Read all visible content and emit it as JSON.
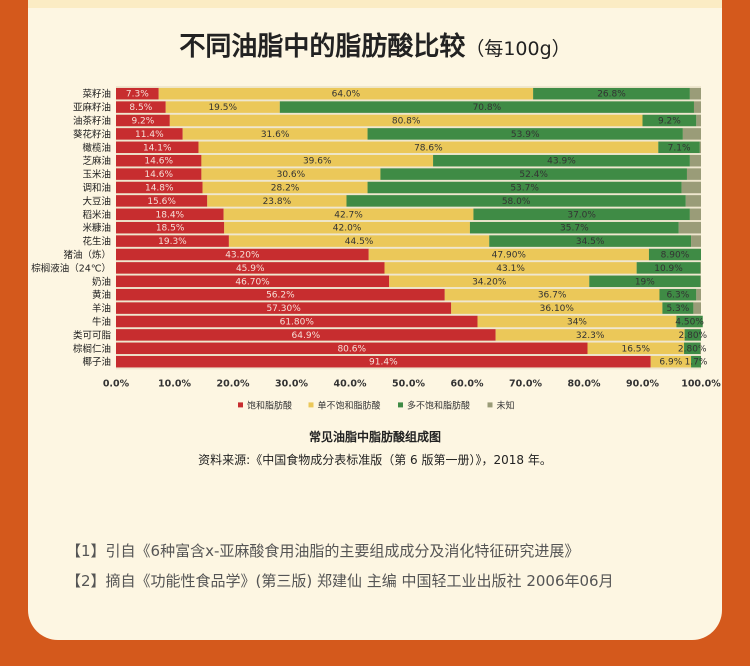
{
  "page": {
    "title": "不同油脂中的脂肪酸比较",
    "title_unit": "（每100g）",
    "caption": "常见油脂中脂肪酸组成图",
    "source": "资料来源:《中国食物成分表标准版（第 6 版第一册）》，2018 年。",
    "references": [
      "【1】引自《6种富含x-亚麻酸食用油脂的主要组成成分及消化特征研究进展》",
      "【2】摘自《功能性食品学》(第三版) 郑建仙 主编    中国轻工业出版社 2006年06月"
    ]
  },
  "colors": {
    "saturated": "#c72d2f",
    "monounsaturated": "#ebc859",
    "polyunsaturated": "#3f8b45",
    "unknown": "#9a9c78",
    "background": "#d4591c",
    "card": "#fdf6e2"
  },
  "chart_data": {
    "type": "bar",
    "orientation": "horizontal",
    "stacked": true,
    "categories": [
      "菜籽油",
      "亚麻籽油",
      "油茶籽油",
      "葵花籽油",
      "橄榄油",
      "芝麻油",
      "玉米油",
      "调和油",
      "大豆油",
      "稻米油",
      "米糠油",
      "花生油",
      "猪油（炼）",
      "棕榈液油（24℃）",
      "奶油",
      "黄油",
      "羊油",
      "牛油",
      "类可可脂",
      "棕榈仁油",
      "椰子油"
    ],
    "series": [
      {
        "name": "饱和脂肪酸",
        "values": [
          7.3,
          8.5,
          9.2,
          11.4,
          14.1,
          14.6,
          14.6,
          14.8,
          15.6,
          18.4,
          18.5,
          19.3,
          43.2,
          45.9,
          46.7,
          56.2,
          57.3,
          61.8,
          64.9,
          80.6,
          91.4
        ],
        "labels": [
          "7.3%",
          "8.5%",
          "9.2%",
          "11.4%",
          "14.1%",
          "14.6%",
          "14.6%",
          "14.8%",
          "15.6%",
          "18.4%",
          "18.5%",
          "19.3%",
          "43.20%",
          "45.9%",
          "46.70%",
          "56.2%",
          "57.30%",
          "61.80%",
          "64.9%",
          "80.6%",
          "91.4%"
        ]
      },
      {
        "name": "单不饱和脂肪酸",
        "values": [
          64.0,
          19.5,
          80.8,
          31.6,
          78.6,
          39.6,
          30.6,
          28.2,
          23.8,
          42.7,
          42.0,
          44.5,
          47.9,
          43.1,
          34.2,
          36.7,
          36.1,
          34,
          32.3,
          16.5,
          6.9
        ],
        "labels": [
          "64.0%",
          "19.5%",
          "80.8%",
          "31.6%",
          "78.6%",
          "39.6%",
          "30.6%",
          "28.2%",
          "23.8%",
          "42.7%",
          "42.0%",
          "44.5%",
          "47.90%",
          "43.1%",
          "34.20%",
          "36.7%",
          "36.10%",
          "34%",
          "32.3%",
          "16.5%",
          "6.9%"
        ]
      },
      {
        "name": "多不饱和脂肪酸",
        "values": [
          26.8,
          70.8,
          9.2,
          53.9,
          7.1,
          43.9,
          52.4,
          53.7,
          58.0,
          37.0,
          35.7,
          34.5,
          8.9,
          10.9,
          19,
          6.3,
          5.3,
          4.5,
          2.8,
          2.8,
          1.7
        ],
        "labels": [
          "26.8%",
          "70.8%",
          "9.2%",
          "53.9%",
          "7.1%",
          "43.9%",
          "52.4%",
          "53.7%",
          "58.0%",
          "37.0%",
          "35.7%",
          "34.5%",
          "8.90%",
          "10.9%",
          "19%",
          "6.3%",
          "5.3%",
          "4.50%",
          "2.80%",
          "2.80%",
          "1.7%"
        ]
      },
      {
        "name": "未知",
        "values": [
          1.9,
          1.2,
          0.8,
          3.1,
          0.2,
          1.9,
          2.4,
          3.3,
          2.6,
          1.9,
          3.8,
          1.7,
          0,
          0.1,
          0.1,
          0.8,
          1.3,
          0,
          0,
          0.1,
          0
        ]
      }
    ],
    "xticks": [
      "0.0%",
      "10.0%",
      "20.0%",
      "30.0%",
      "40.0%",
      "50.0%",
      "60.0%",
      "70.0%",
      "80.0%",
      "90.0%",
      "100.0%"
    ],
    "xlim": [
      0,
      100
    ],
    "legend_position": "bottom"
  }
}
